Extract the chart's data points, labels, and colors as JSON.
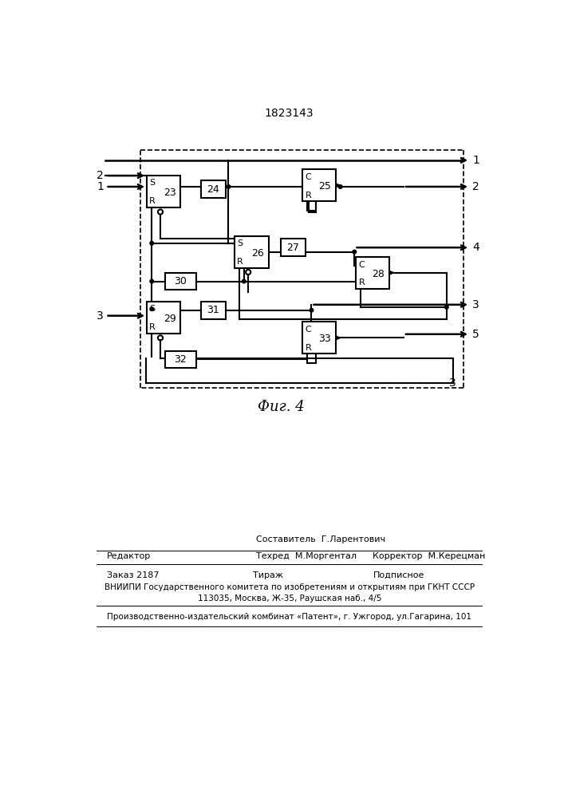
{
  "title": "1823143",
  "fig_caption": "Фиг. 4",
  "bg_color": "#ffffff",
  "line_color": "#000000",
  "patent_text": {
    "line1": "Составитель  Г.Ларентович",
    "line2": "Техред  М.Моргентал",
    "line3": "Корректор  М.Керецман",
    "editor": "Редактор",
    "order": "Заказ 2187",
    "tirazh": "Тираж",
    "podpisnoe": "Подписное",
    "vniipи": "ВНИИПИ Государственного комитета по изобретениям и открытиям при ГКНТ СССР",
    "address": "113035, Москва, Ж-35, Раушская наб., 4/5",
    "producer": "Производственно-издательский комбинат «Патент», г. Ужгород, ул.Гагарина, 101"
  }
}
